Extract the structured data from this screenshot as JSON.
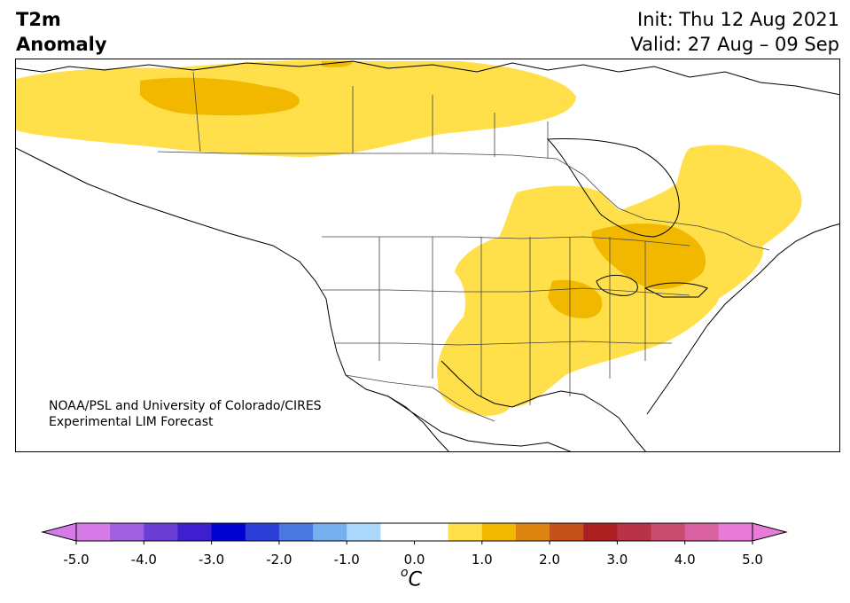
{
  "title": {
    "left_line1": "T2m",
    "left_line2": "Anomaly",
    "right_line1": "Init: Thu 12 Aug 2021",
    "right_line2": "Valid: 27 Aug – 09 Sep"
  },
  "credit": {
    "line1": "NOAA/PSL and University of Colorado/CIRES",
    "line2": "Experimental LIM Forecast"
  },
  "colorbar": {
    "unit_base": "C",
    "unit_superscript": "o",
    "ticks": [
      "-5.0",
      "-4.0",
      "-3.0",
      "-2.0",
      "-1.0",
      "0.0",
      "1.0",
      "2.0",
      "3.0",
      "4.0",
      "5.0"
    ],
    "low_extend_color": "#d67ae8",
    "high_extend_color": "#e87bd8",
    "bins": [
      {
        "range": [
          -5.0,
          -4.5
        ],
        "color": "#d67ae8"
      },
      {
        "range": [
          -4.5,
          -4.0
        ],
        "color": "#a05ee0"
      },
      {
        "range": [
          -4.0,
          -3.5
        ],
        "color": "#6b3fd6"
      },
      {
        "range": [
          -3.5,
          -3.0
        ],
        "color": "#3d1fd0"
      },
      {
        "range": [
          -3.0,
          -2.5
        ],
        "color": "#0000d0"
      },
      {
        "range": [
          -2.5,
          -2.0
        ],
        "color": "#2b3fd8"
      },
      {
        "range": [
          -2.0,
          -1.5
        ],
        "color": "#4a78e0"
      },
      {
        "range": [
          -1.5,
          -1.0
        ],
        "color": "#76b0ee"
      },
      {
        "range": [
          -1.0,
          -0.5
        ],
        "color": "#aad8fa"
      },
      {
        "range": [
          -0.5,
          0.0
        ],
        "color": "#ffffff"
      },
      {
        "range": [
          0.0,
          0.5
        ],
        "color": "#ffffff"
      },
      {
        "range": [
          0.5,
          1.0
        ],
        "color": "#ffe04a"
      },
      {
        "range": [
          1.0,
          1.5
        ],
        "color": "#f2b800"
      },
      {
        "range": [
          1.5,
          2.0
        ],
        "color": "#dc8410"
      },
      {
        "range": [
          2.0,
          2.5
        ],
        "color": "#c4521a"
      },
      {
        "range": [
          2.5,
          3.0
        ],
        "color": "#aa2020"
      },
      {
        "range": [
          3.0,
          3.5
        ],
        "color": "#b83248"
      },
      {
        "range": [
          3.5,
          4.0
        ],
        "color": "#c84c70"
      },
      {
        "range": [
          4.0,
          4.5
        ],
        "color": "#da62a2"
      },
      {
        "range": [
          4.5,
          5.0
        ],
        "color": "#e87bd8"
      }
    ]
  },
  "map": {
    "projection": "North America, Lambert-style",
    "colors": {
      "ocean_land_background": "#ffffff",
      "coastline": "#000000",
      "borders": "#444444",
      "warm_0_5_to_1_0": "#ffe04a",
      "warm_1_0_to_1_5": "#f2b800"
    },
    "regions_shaded": [
      {
        "area": "Northwestern Canada / Alaska border",
        "anomaly_bin": "0.5 to 1.0"
      },
      {
        "area": "Yukon / Northwest Territories core",
        "anomaly_bin": "1.0 to 1.5"
      },
      {
        "area": "Central US (Plains to Midwest)",
        "anomaly_bin": "0.5 to 1.0"
      },
      {
        "area": "Illinois / Lake Michigan",
        "anomaly_bin": "1.0 to 1.5"
      },
      {
        "area": "Eastern Canada (Quebec, Ontario)",
        "anomaly_bin": "0.5 to 1.0"
      },
      {
        "area": "Southern Ontario / Quebec core",
        "anomaly_bin": "1.0 to 1.5"
      },
      {
        "area": "Eastern and southeastern US",
        "anomaly_bin": "0.5 to 1.0"
      },
      {
        "area": "Texas",
        "anomaly_bin": "0.5 to 1.0"
      }
    ]
  }
}
